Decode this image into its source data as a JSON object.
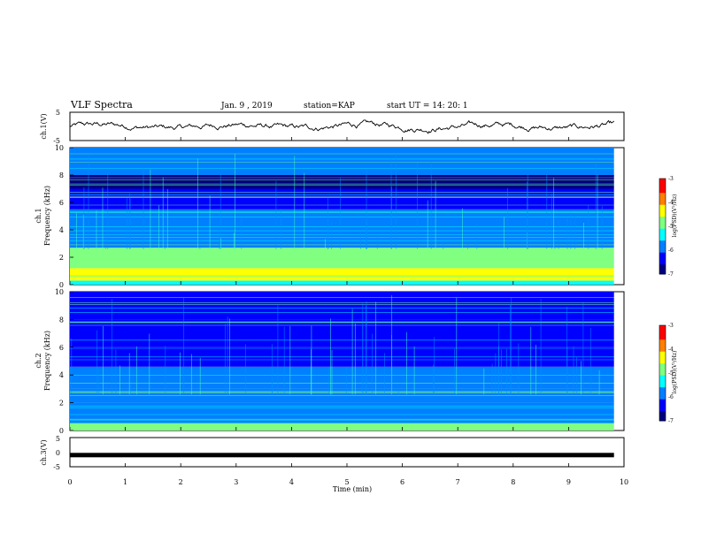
{
  "header": {
    "title": "VLF Spectra",
    "date": "Jan. 9 , 2019",
    "station": "station=KAP",
    "start": "start UT = 14: 20: 1"
  },
  "colors": {
    "waveform": "#000000",
    "colormap": [
      "#000080",
      "#0000ff",
      "#0080ff",
      "#00ffff",
      "#80ff80",
      "#ffff00",
      "#ff8000",
      "#ff0000",
      "#ffffff"
    ]
  },
  "chart_data": [
    {
      "type": "line",
      "name": "ch1-waveform",
      "ylabel": "ch.1(V)",
      "ylim": [
        -5,
        5
      ],
      "yticks": [
        "5",
        "-5"
      ],
      "xlim": [
        0,
        10
      ],
      "description_values": "oscillating signal around 0 V with amplitude about ±2 V"
    },
    {
      "type": "heatmap",
      "name": "ch1-spectrogram",
      "ylabel": "ch.1\nFrequency (kHz)",
      "ylabel_line1": "ch.1",
      "ylabel_line2": "Frequency (kHz)",
      "ylim": [
        0,
        10
      ],
      "yticks": [
        "0",
        "2",
        "4",
        "6",
        "8",
        "10"
      ],
      "xlim": [
        0,
        9.82
      ],
      "colorbar": {
        "label": "log(PSD)(V²/Hz)",
        "range": [
          -7,
          -3
        ],
        "ticks": [
          "-3",
          "-4",
          "-5",
          "-6",
          "-7"
        ]
      },
      "bands": [
        {
          "from": 0.0,
          "to": 0.3,
          "level": -5.5
        },
        {
          "from": 0.3,
          "to": 1.2,
          "level": -4.2
        },
        {
          "from": 1.2,
          "to": 2.7,
          "level": -4.8
        },
        {
          "from": 2.7,
          "to": 3.3,
          "level": -5.8
        },
        {
          "from": 3.3,
          "to": 5.5,
          "level": -5.6
        },
        {
          "from": 5.5,
          "to": 7.0,
          "level": -6.2
        },
        {
          "from": 7.0,
          "to": 8.0,
          "level": -6.6
        },
        {
          "from": 8.0,
          "to": 10.0,
          "level": -6.0
        }
      ]
    },
    {
      "type": "heatmap",
      "name": "ch2-spectrogram",
      "ylabel": "ch.2\nFrequency (kHz)",
      "ylabel_line1": "ch.2",
      "ylabel_line2": "Frequency (kHz)",
      "ylim": [
        0,
        10
      ],
      "yticks": [
        "0",
        "2",
        "4",
        "6",
        "8",
        "10"
      ],
      "xlim": [
        0,
        9.82
      ],
      "colorbar": {
        "label": "log(PSD)(V²/Hz)",
        "range": [
          -7,
          -3
        ],
        "ticks": [
          "-3",
          "-4",
          "-5",
          "-6",
          "-7"
        ]
      },
      "bands": [
        {
          "from": 0.0,
          "to": 0.5,
          "level": -5.0
        },
        {
          "from": 0.5,
          "to": 2.0,
          "level": -5.6
        },
        {
          "from": 2.0,
          "to": 3.0,
          "level": -5.9
        },
        {
          "from": 3.0,
          "to": 4.6,
          "level": -5.8
        },
        {
          "from": 4.6,
          "to": 6.0,
          "level": -6.3
        },
        {
          "from": 6.0,
          "to": 8.0,
          "level": -6.5
        },
        {
          "from": 8.0,
          "to": 10.0,
          "level": -6.1
        }
      ]
    },
    {
      "type": "line",
      "name": "ch3-waveform",
      "ylabel": "ch.3(V)",
      "ylim": [
        -5,
        5
      ],
      "yticks": [
        "5",
        "0",
        "-5"
      ],
      "xlim": [
        0,
        10
      ],
      "constant_value": -1
    }
  ],
  "xaxis": {
    "label": "Time (min)",
    "range": [
      0,
      10
    ],
    "ticks": [
      "0",
      "1",
      "2",
      "3",
      "4",
      "5",
      "6",
      "7",
      "8",
      "9",
      "10"
    ]
  }
}
